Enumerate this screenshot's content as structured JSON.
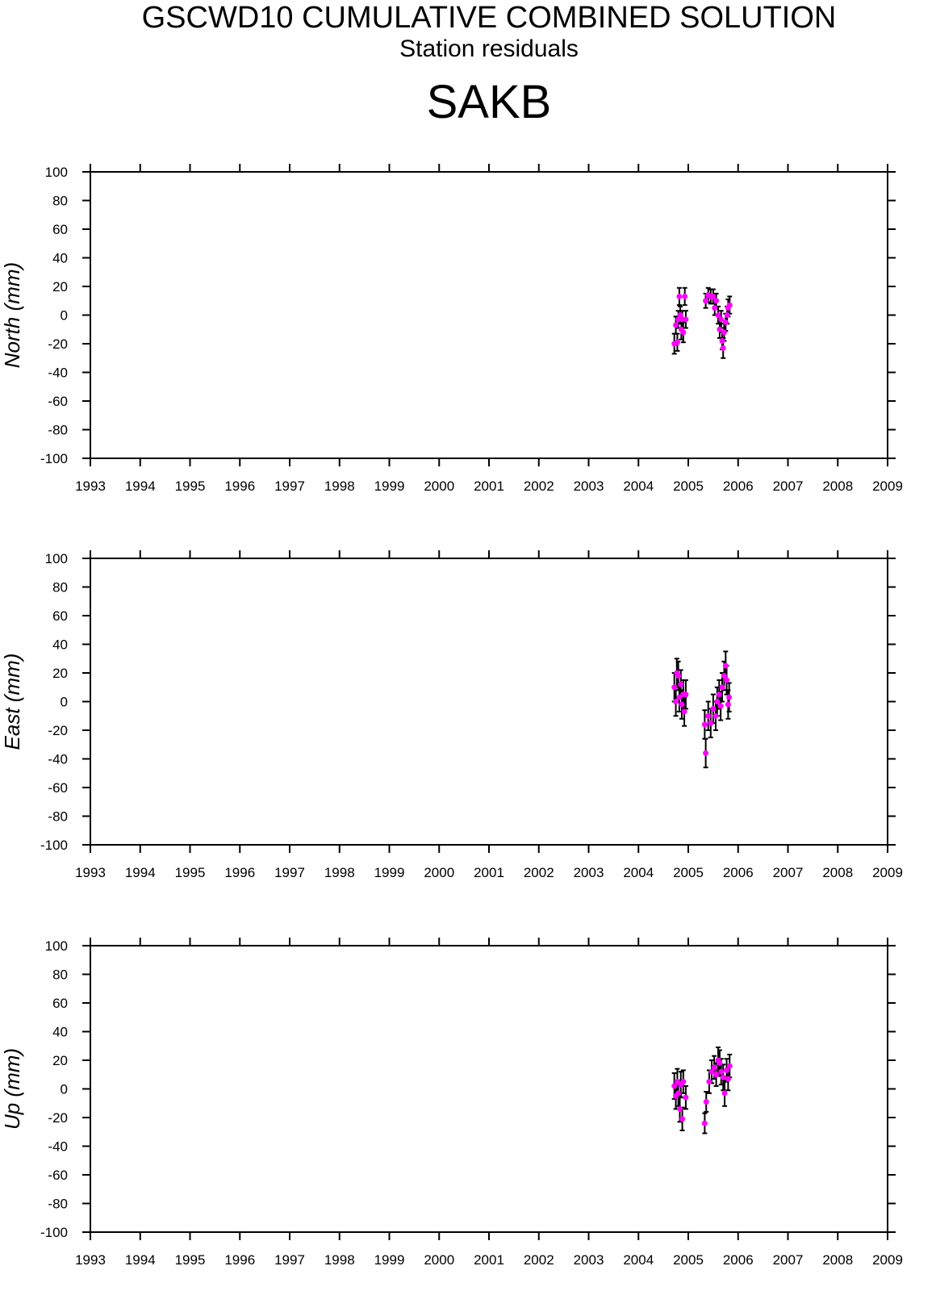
{
  "header": {
    "title": "GSCWD10 CUMULATIVE COMBINED SOLUTION",
    "subtitle": "Station residuals",
    "station": "SAKB"
  },
  "chart_data": [
    {
      "type": "scatter",
      "ylabel": "North (mm)",
      "xlim": [
        1993,
        2009
      ],
      "ylim": [
        -100,
        100
      ],
      "xticks": [
        1993,
        1994,
        1995,
        1996,
        1997,
        1998,
        1999,
        2000,
        2001,
        2002,
        2003,
        2004,
        2005,
        2006,
        2007,
        2008,
        2009
      ],
      "yticks": [
        -100,
        -80,
        -60,
        -40,
        -20,
        0,
        20,
        40,
        60,
        80,
        100
      ],
      "color": "#ff00ff",
      "error_color": "#000000",
      "x": [
        2004.72,
        2004.75,
        2004.78,
        2004.8,
        2004.82,
        2004.84,
        2004.86,
        2004.88,
        2004.9,
        2004.93,
        2004.95,
        2005.35,
        2005.4,
        2005.45,
        2005.5,
        2005.53,
        2005.56,
        2005.6,
        2005.63,
        2005.66,
        2005.68,
        2005.7,
        2005.72,
        2005.75,
        2005.78,
        2005.8,
        2005.83
      ],
      "values": [
        -20,
        -7,
        -19,
        -3,
        13,
        0,
        -10,
        -3,
        -12,
        13,
        -3,
        10,
        14,
        13,
        13,
        5,
        10,
        0,
        -10,
        -3,
        -18,
        -23,
        -12,
        -5,
        0,
        5,
        7
      ],
      "errors": [
        7,
        6,
        6,
        6,
        6,
        6,
        7,
        6,
        7,
        6,
        6,
        5,
        5,
        5,
        5,
        5,
        5,
        6,
        6,
        6,
        6,
        7,
        6,
        6,
        6,
        6,
        6
      ]
    },
    {
      "type": "scatter",
      "ylabel": "East (mm)",
      "xlim": [
        1993,
        2009
      ],
      "ylim": [
        -100,
        100
      ],
      "xticks": [
        1993,
        1994,
        1995,
        1996,
        1997,
        1998,
        1999,
        2000,
        2001,
        2002,
        2003,
        2004,
        2005,
        2006,
        2007,
        2008,
        2009
      ],
      "yticks": [
        -100,
        -80,
        -60,
        -40,
        -20,
        0,
        20,
        40,
        60,
        80,
        100
      ],
      "color": "#ff00ff",
      "error_color": "#000000",
      "x": [
        2004.72,
        2004.75,
        2004.77,
        2004.8,
        2004.82,
        2004.85,
        2004.87,
        2004.9,
        2004.92,
        2004.95,
        2005.33,
        2005.35,
        2005.4,
        2005.45,
        2005.5,
        2005.55,
        2005.58,
        2005.62,
        2005.65,
        2005.68,
        2005.72,
        2005.75,
        2005.77,
        2005.8,
        2005.82
      ],
      "values": [
        10,
        0,
        20,
        18,
        3,
        12,
        -2,
        5,
        -7,
        5,
        -16,
        -36,
        -10,
        -15,
        -5,
        -10,
        0,
        5,
        -3,
        10,
        18,
        25,
        15,
        -2,
        3
      ],
      "errors": [
        10,
        10,
        10,
        10,
        10,
        10,
        10,
        10,
        10,
        10,
        10,
        10,
        10,
        10,
        10,
        10,
        10,
        10,
        10,
        10,
        10,
        10,
        10,
        10,
        10
      ]
    },
    {
      "type": "scatter",
      "ylabel": "Up (mm)",
      "xlim": [
        1993,
        2009
      ],
      "ylim": [
        -100,
        100
      ],
      "xticks": [
        1993,
        1994,
        1995,
        1996,
        1997,
        1998,
        1999,
        2000,
        2001,
        2002,
        2003,
        2004,
        2005,
        2006,
        2007,
        2008,
        2009
      ],
      "yticks": [
        -100,
        -80,
        -60,
        -40,
        -20,
        0,
        20,
        40,
        60,
        80,
        100
      ],
      "color": "#ff00ff",
      "error_color": "#000000",
      "x": [
        2004.72,
        2004.75,
        2004.78,
        2004.8,
        2004.83,
        2004.85,
        2004.88,
        2004.9,
        2004.95,
        2005.33,
        2005.36,
        2005.42,
        2005.47,
        2005.52,
        2005.56,
        2005.6,
        2005.63,
        2005.66,
        2005.7,
        2005.73,
        2005.77,
        2005.8,
        2005.83
      ],
      "values": [
        2,
        -5,
        5,
        -3,
        -14,
        3,
        -21,
        5,
        -6,
        -24,
        -9,
        5,
        12,
        15,
        10,
        20,
        18,
        12,
        8,
        -3,
        13,
        7,
        16
      ],
      "errors": [
        9,
        9,
        9,
        9,
        9,
        9,
        8,
        8,
        8,
        7,
        7,
        8,
        8,
        8,
        8,
        9,
        9,
        9,
        9,
        9,
        8,
        8,
        8
      ]
    }
  ]
}
